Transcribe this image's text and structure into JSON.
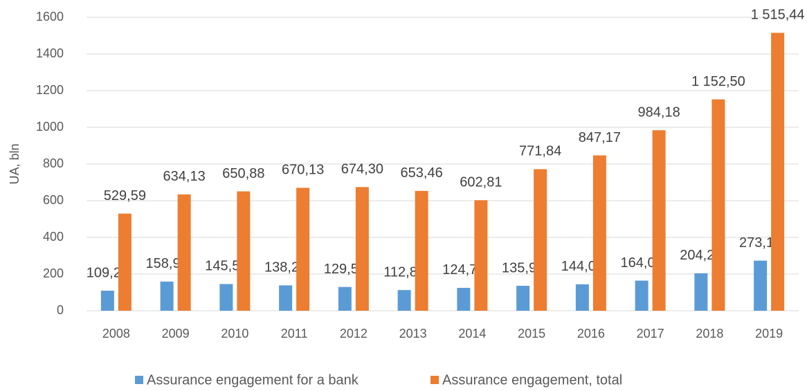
{
  "chart_data": {
    "type": "bar",
    "y_label": "UA, bln",
    "categories": [
      "2008",
      "2009",
      "2010",
      "2011",
      "2012",
      "2013",
      "2014",
      "2015",
      "2016",
      "2017",
      "2018",
      "2019"
    ],
    "series": [
      {
        "name": "Assurance engagement for a bank",
        "color": "#5b9bd5",
        "values": [
          109.28,
          158.99,
          145.58,
          138.28,
          129.5,
          112.8,
          124.72,
          135.95,
          144.05,
          164.08,
          204.24,
          273.1
        ],
        "value_labels": [
          "109,28",
          "158,99",
          "145,58",
          "138,28",
          "129,50",
          "112,80",
          "124,72",
          "135,95",
          "144,05",
          "164,08",
          "204,24",
          "273,10"
        ]
      },
      {
        "name": "Assurance engagement, total",
        "color": "#ed7d31",
        "values": [
          529.59,
          634.13,
          650.88,
          670.13,
          674.3,
          653.46,
          602.81,
          771.84,
          847.17,
          984.18,
          1152.5,
          1515.44
        ],
        "value_labels": [
          "529,59",
          "634,13",
          "650,88",
          "670,13",
          "674,30",
          "653,46",
          "602,81",
          "771,84",
          "847,17",
          "984,18",
          "1 152,50",
          "1 515,44"
        ]
      }
    ],
    "ylim": [
      0,
      1600
    ],
    "yticks": [
      0,
      200,
      400,
      600,
      800,
      1000,
      1200,
      1400,
      1600
    ],
    "grid": true,
    "legend": "bottom"
  }
}
